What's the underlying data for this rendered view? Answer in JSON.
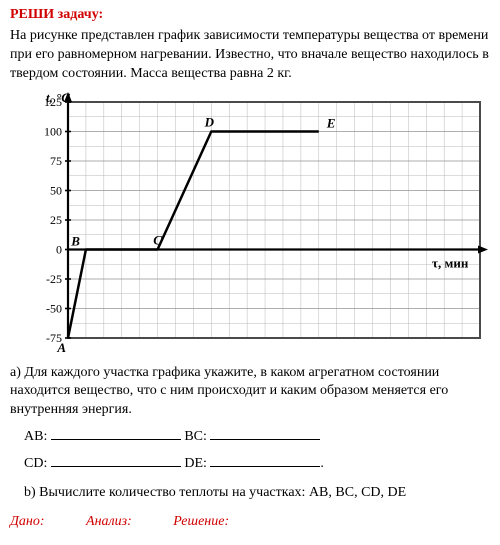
{
  "header": {
    "title": "РЕШИ задачу:",
    "problem": "На рисунке представлен график зависимости температуры вещества от времени при его равномерном нагревании. Известно, что вначале вещество находилось в твердом состоянии. Масса вещества равна 2 кг."
  },
  "chart": {
    "type": "line",
    "title": "",
    "y_axis": {
      "label": "t, °C",
      "unit": "°C",
      "min": -75,
      "max": 125,
      "tick_step": 25,
      "label_fontsize": 13,
      "font_style": "italic"
    },
    "x_axis": {
      "label": "τ, мин",
      "unit": "мин",
      "min": 0,
      "max": 23,
      "grid_step": 1,
      "label_fontsize": 13,
      "font_style": "bold"
    },
    "points": {
      "A": {
        "x": 0,
        "y": -75
      },
      "B": {
        "x": 1,
        "y": 0
      },
      "C": {
        "x": 5,
        "y": 0
      },
      "D": {
        "x": 8,
        "y": 100
      },
      "E": {
        "x": 14,
        "y": 100
      }
    },
    "series": [
      {
        "from": "A",
        "to": "B"
      },
      {
        "from": "B",
        "to": "C"
      },
      {
        "from": "C",
        "to": "D"
      },
      {
        "from": "D",
        "to": "E"
      }
    ],
    "colors": {
      "background": "#ffffff",
      "grid_minor": "#b8b8b8",
      "grid_major": "#808080",
      "border": "#4a4a4a",
      "axis": "#000000",
      "line": "#000000",
      "text": "#000000"
    },
    "line_width": 2.5,
    "grid_line_width": 0.5,
    "border_line_width": 2,
    "axis_line_width": 2.2,
    "point_label_fontsize": 13,
    "tick_label_fontsize": 12
  },
  "section_a": {
    "label": "а)",
    "text": "Для каждого участка графика укажите, в каком агрегатном состоянии находится вещество, что с ним происходит и каким образом меняется его внутренняя энергия.",
    "rows": [
      {
        "left_label": "AB:",
        "right_label": "BC:"
      },
      {
        "left_label": "CD:",
        "right_label": "DE:",
        "trailing": "."
      }
    ]
  },
  "section_b": {
    "label": "b)",
    "text": "Вычислите количество теплоты на участках: AB, BC, CD, DE"
  },
  "bottom": {
    "col1": "Дано:",
    "col2": "Анализ:",
    "col3": "Решение:"
  }
}
